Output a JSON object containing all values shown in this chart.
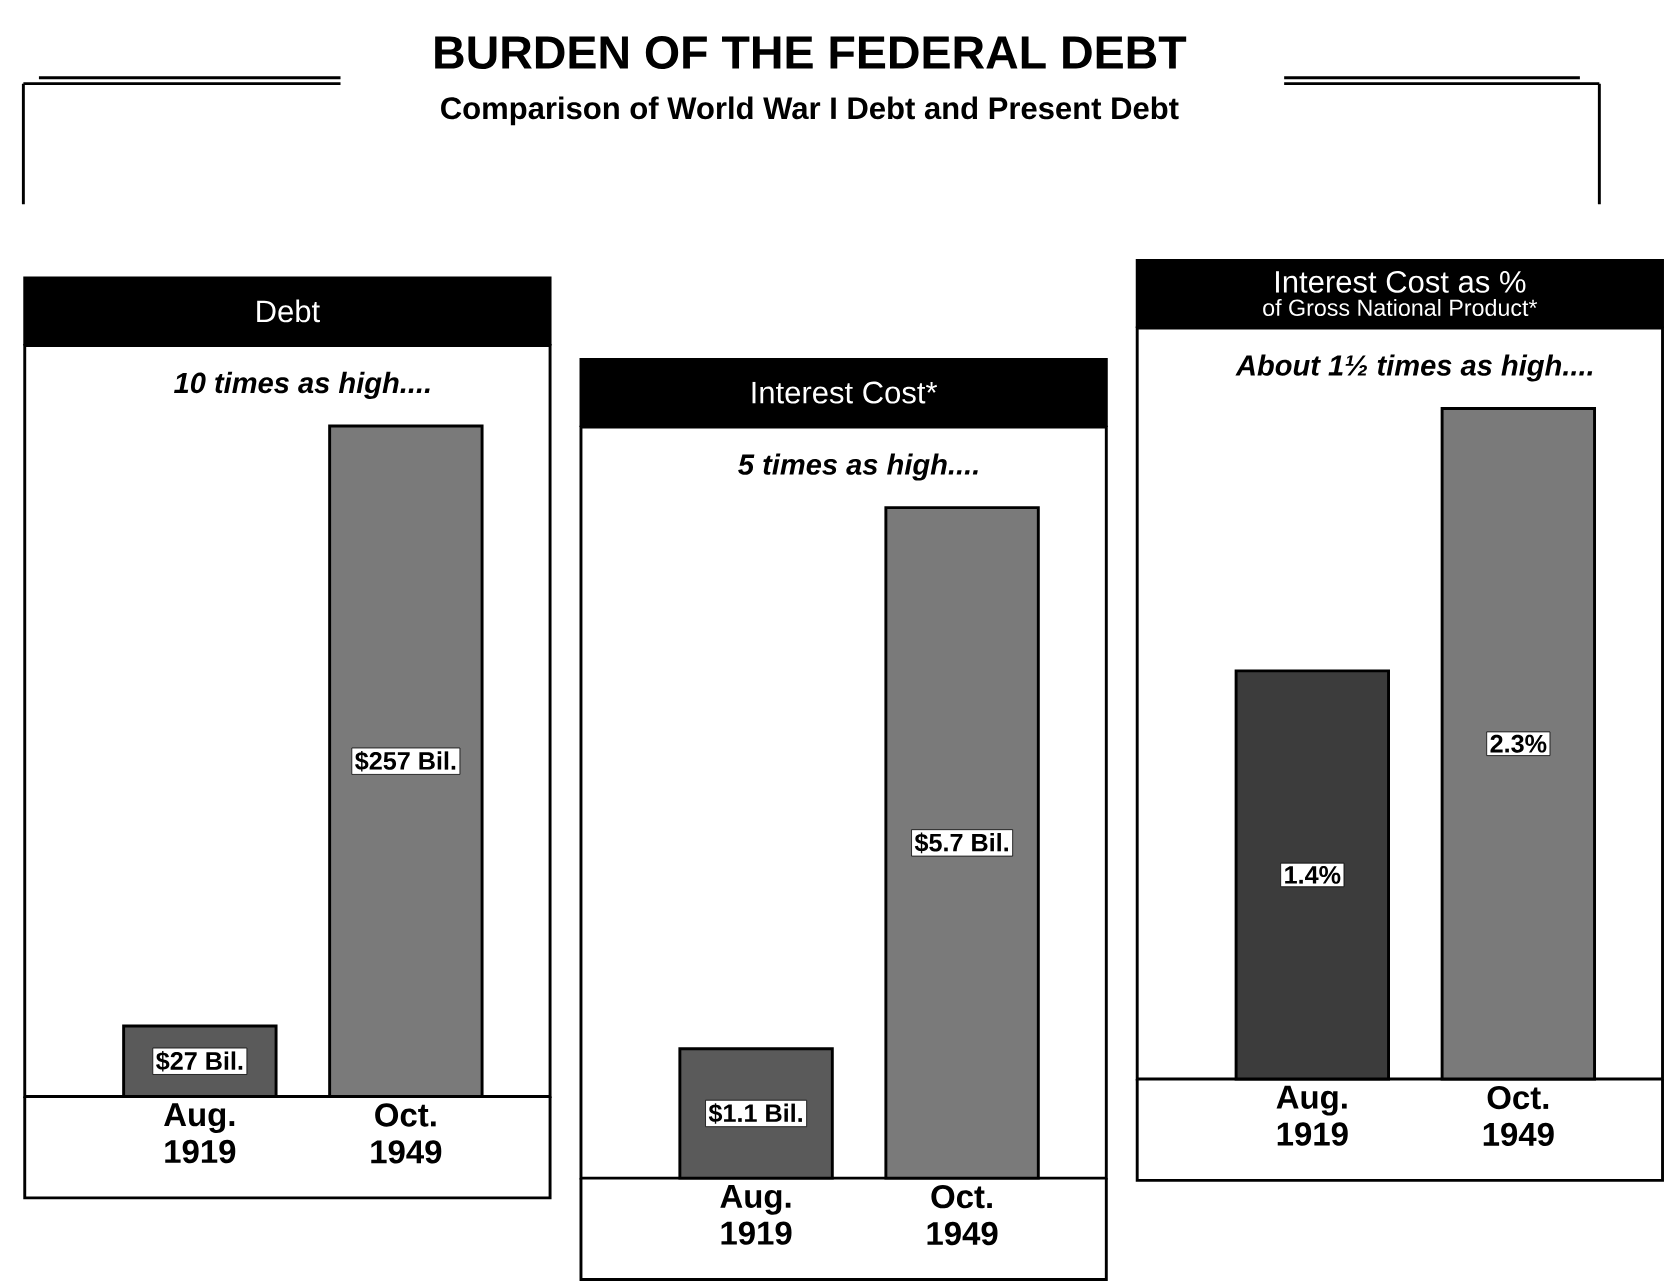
{
  "chart_data": [
    {
      "type": "other",
      "title": "BURDEN OF THE FEDERAL DEBT",
      "subtitle": "Comparison of World War I Debt and Present Debt"
    },
    {
      "type": "bar",
      "title": "Debt",
      "categories": [
        "Aug. 1919",
        "Oct. 1949"
      ],
      "values": [
        27,
        257
      ],
      "colors": [
        "#5a5a5a",
        "#7a7a7a"
      ],
      "value_labels": [
        "$27 Bil.",
        "$257 Bil."
      ],
      "annotations": [
        "10 times as high...."
      ]
    },
    {
      "type": "bar",
      "title": "Interest Cost*",
      "categories": [
        "Aug. 1919",
        "Oct. 1949"
      ],
      "values": [
        1.1,
        5.7
      ],
      "colors": [
        "#5a5a5a",
        "#7a7a7a"
      ],
      "value_labels": [
        "$1.1 Bil.",
        "$5.7 Bil."
      ],
      "annotations": [
        "5 times as high...."
      ]
    },
    {
      "type": "bar",
      "title": "Interest Cost as %",
      "subtitle": "of Gross National Product*",
      "categories": [
        "Aug. 1919",
        "Oct. 1949"
      ],
      "values": [
        1.4,
        2.3
      ],
      "colors": [
        "#3c3c3c",
        "#7a7a7a"
      ],
      "value_labels": [
        "1.4%",
        "2.3%"
      ],
      "annotations": [
        "About 1½ times as high...."
      ]
    }
  ]
}
